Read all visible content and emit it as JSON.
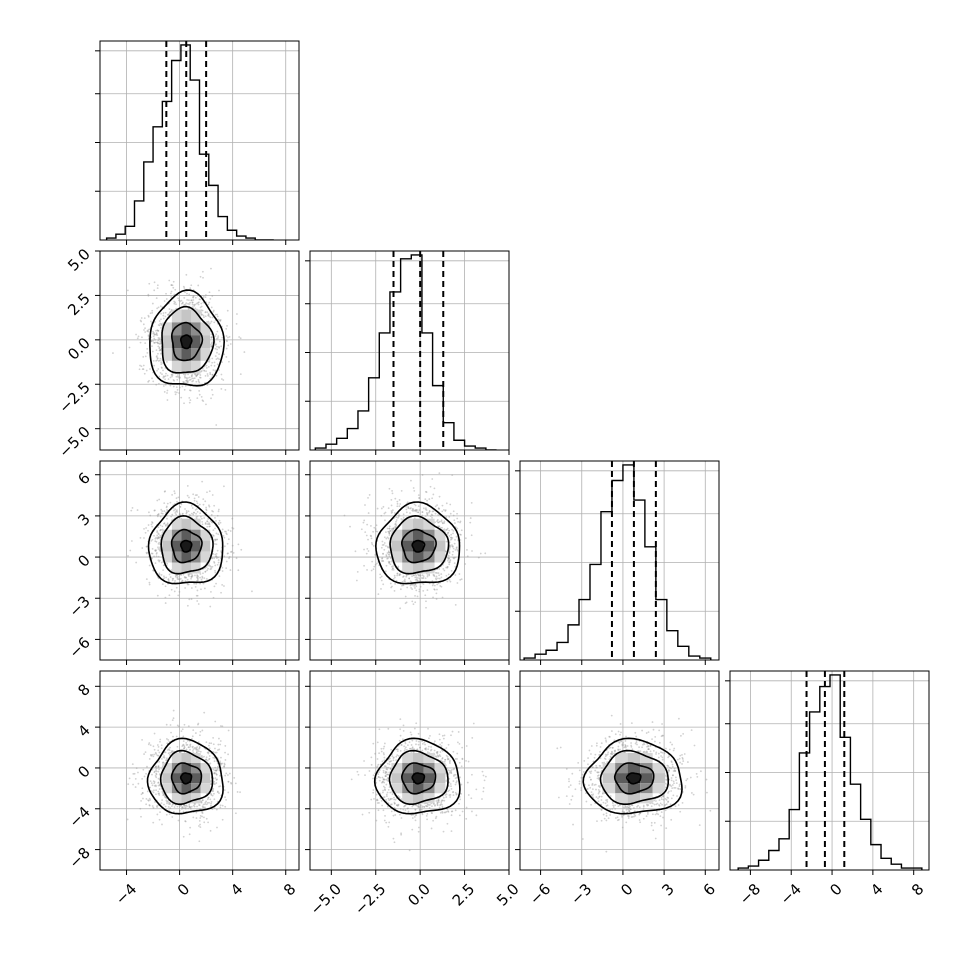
{
  "chart_data": {
    "type": "corner",
    "description_kind": "pairwise posterior corner plot with 1D histograms on diagonal and 2D density contours below",
    "grid": true,
    "colors": {
      "axes": "#000000",
      "grid": "#b0b0b0",
      "scatter": "#9a9a9a",
      "hist": "#000000"
    },
    "params": [
      {
        "lim": [
          -6,
          9
        ],
        "ticks": [
          -4,
          0,
          4,
          8
        ],
        "tick_labels": [
          "−4",
          "0",
          "4",
          "8"
        ],
        "quantiles": [
          -1.0,
          0.5,
          2.0
        ],
        "hist_bins": [
          -5.5,
          -4.8,
          -4.1,
          -3.4,
          -2.7,
          -2.0,
          -1.3,
          -0.6,
          0.1,
          0.8,
          1.5,
          2.2,
          2.9,
          3.6,
          4.3,
          5.0,
          5.7,
          6.4,
          7.1
        ],
        "hist_counts": [
          1,
          3,
          7,
          20,
          40,
          58,
          71,
          92,
          100,
          82,
          44,
          28,
          12,
          5,
          2,
          1,
          0,
          0
        ]
      },
      {
        "lim": [
          -6.2,
          5
        ],
        "ticks": [
          -5.0,
          -2.5,
          0.0,
          2.5,
          5.0
        ],
        "tick_labels": [
          "−5.0",
          "−2.5",
          "0.0",
          "2.5",
          "5.0"
        ],
        "quantiles": [
          -1.5,
          0.0,
          1.3
        ],
        "hist_bins": [
          -5.9,
          -5.3,
          -4.7,
          -4.1,
          -3.5,
          -2.9,
          -2.3,
          -1.7,
          -1.1,
          -0.5,
          0.1,
          0.7,
          1.3,
          1.9,
          2.5,
          3.1,
          3.7,
          4.3
        ],
        "hist_counts": [
          1,
          3,
          6,
          11,
          20,
          37,
          60,
          81,
          98,
          100,
          60,
          33,
          14,
          5,
          2,
          1,
          0
        ]
      },
      {
        "lim": [
          -7.5,
          7
        ],
        "ticks": [
          -6,
          -3,
          0,
          3,
          6
        ],
        "tick_labels": [
          "−6",
          "−3",
          "0",
          "3",
          "6"
        ],
        "quantiles": [
          -0.8,
          0.8,
          2.4
        ],
        "hist_bins": [
          -7.2,
          -6.4,
          -5.6,
          -4.8,
          -4.0,
          -3.2,
          -2.4,
          -1.6,
          -0.8,
          0.0,
          0.8,
          1.6,
          2.4,
          3.2,
          4.0,
          4.8,
          5.6,
          6.4
        ],
        "hist_counts": [
          1,
          3,
          5,
          9,
          18,
          31,
          49,
          76,
          92,
          100,
          82,
          58,
          31,
          15,
          7,
          2,
          1
        ]
      },
      {
        "lim": [
          -10,
          9.5
        ],
        "ticks": [
          -8,
          -4,
          0,
          4,
          8
        ],
        "tick_labels": [
          "−8",
          "−4",
          "0",
          "4",
          "8"
        ],
        "quantiles": [
          -2.5,
          -0.7,
          1.2
        ],
        "hist_bins": [
          -9.2,
          -8.2,
          -7.2,
          -6.2,
          -5.2,
          -4.2,
          -3.2,
          -2.2,
          -1.2,
          -0.2,
          0.8,
          1.8,
          2.8,
          3.8,
          4.8,
          5.8,
          6.8,
          7.8,
          8.8
        ],
        "hist_counts": [
          1,
          2,
          5,
          10,
          16,
          31,
          60,
          81,
          94,
          100,
          68,
          44,
          26,
          13,
          6,
          3,
          1,
          1
        ]
      }
    ],
    "pairs": [
      {
        "row": 1,
        "col": 0,
        "center": [
          0.5,
          -0.1
        ],
        "sx": 1.9,
        "sy": 1.9
      },
      {
        "row": 2,
        "col": 0,
        "center": [
          0.5,
          0.8
        ],
        "sx": 1.9,
        "sy": 2.1
      },
      {
        "row": 2,
        "col": 1,
        "center": [
          -0.1,
          0.8
        ],
        "sx": 1.6,
        "sy": 2.1
      },
      {
        "row": 3,
        "col": 0,
        "center": [
          0.5,
          -1.0
        ],
        "sx": 1.9,
        "sy": 2.6
      },
      {
        "row": 3,
        "col": 1,
        "center": [
          -0.1,
          -1.0
        ],
        "sx": 1.6,
        "sy": 2.6
      },
      {
        "row": 3,
        "col": 2,
        "center": [
          0.8,
          -1.0
        ],
        "sx": 2.4,
        "sy": 2.6
      }
    ]
  }
}
